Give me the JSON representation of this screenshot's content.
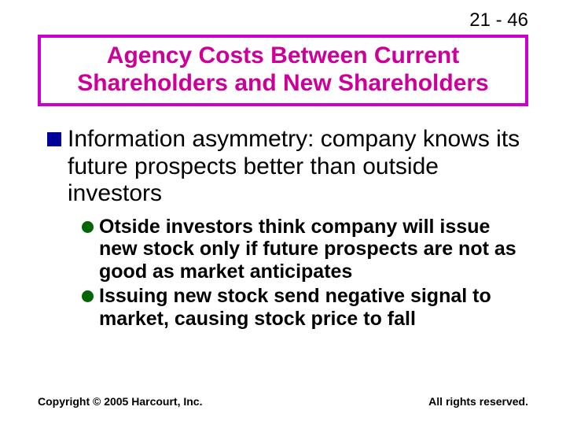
{
  "page_number": "21 - 46",
  "title": {
    "text": "Agency Costs Between Current Shareholders and New Shareholders",
    "text_color": "#cc0099",
    "border_color": "#cc00cc",
    "background_color": "#ffffff",
    "font_size_pt": 30,
    "font_weight": "bold"
  },
  "bullets_l1": [
    {
      "text": "Information asymmetry: company knows its future prospects better than outside investors",
      "marker_color": "#000099",
      "marker_shape": "square",
      "font_size_pt": 30
    }
  ],
  "bullets_l2": [
    {
      "text": "Otside investors think company will issue new stock only if future prospects are not as good as market anticipates",
      "marker_color": "#006600",
      "marker_shape": "circle",
      "font_size_pt": 25,
      "font_weight": "bold"
    },
    {
      "text": "Issuing new stock send negative signal to market, causing stock price to fall",
      "marker_color": "#006600",
      "marker_shape": "circle",
      "font_size_pt": 25,
      "font_weight": "bold"
    }
  ],
  "footer": {
    "left": "Copyright © 2005 Harcourt, Inc.",
    "right": "All rights reserved.",
    "font_size_pt": 14,
    "font_weight": "bold"
  },
  "colors": {
    "background": "#ffffff",
    "text_default": "#000000"
  }
}
